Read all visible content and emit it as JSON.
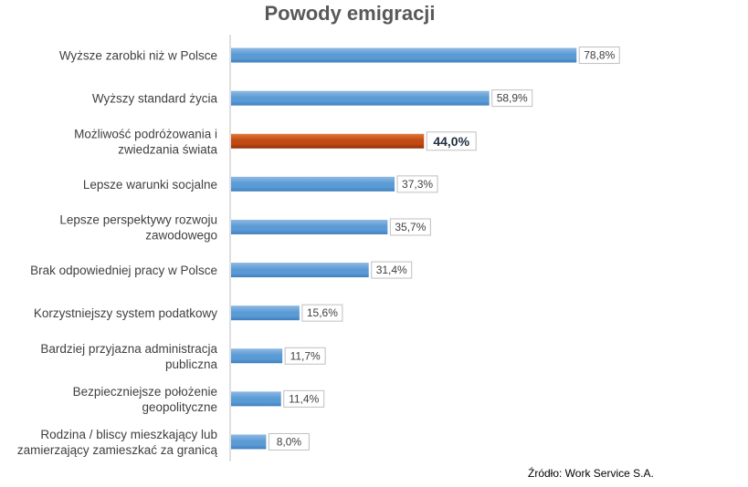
{
  "chart_data": {
    "type": "bar",
    "orientation": "horizontal",
    "title": "Powody emigracji",
    "categories": [
      [
        "Wyższe zarobki niż w Polsce"
      ],
      [
        "Wyższy standard życia"
      ],
      [
        "Możliwość podróżowania i",
        "zwiedzania świata"
      ],
      [
        "Lepsze warunki socjalne"
      ],
      [
        "Lepsze perspektywy rozwoju",
        "zawodowego"
      ],
      [
        "Brak odpowiedniej pracy w Polsce"
      ],
      [
        "Korzystniejszy system podatkowy"
      ],
      [
        "Bardziej przyjazna administracja",
        "publiczna"
      ],
      [
        "Bezpieczniejsze położenie",
        "geopolityczne"
      ],
      [
        "Rodzina / bliscy mieszkający lub",
        "zamierzający zamieszkać za granicą"
      ]
    ],
    "values": [
      78.8,
      58.9,
      44.0,
      37.3,
      35.7,
      31.4,
      15.6,
      11.7,
      11.4,
      8.0
    ],
    "value_labels": [
      "78,8%",
      "58,9%",
      "44,0%",
      "37,3%",
      "35,7%",
      "31,4%",
      "15,6%",
      "11,7%",
      "11,4%",
      "8,0%"
    ],
    "highlight_index": 2,
    "xlim": [
      0,
      100
    ],
    "xlabel": "",
    "ylabel": "",
    "grid": false,
    "legend": "none",
    "colors": {
      "bar": "#5b9bd5",
      "bar_dark": "#3f7fbf",
      "bar_light": "#8fb9e3",
      "highlight": "#c04a12",
      "highlight_dark": "#8f2f06",
      "highlight_light": "#e07a3a"
    }
  },
  "source": "Źródło: Work Service S.A."
}
